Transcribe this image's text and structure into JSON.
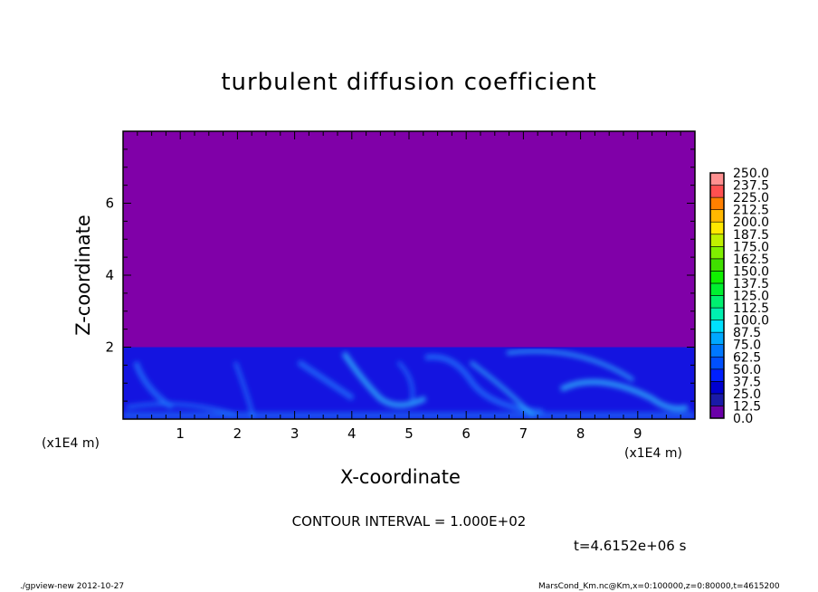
{
  "chart_data": {
    "type": "heatmap",
    "title": "turbulent diffusion coefficient",
    "xlabel": "X-coordinate",
    "ylabel": "Z-coordinate",
    "x_unit": "(x1E4 m)",
    "y_unit": "(x1E4 m)",
    "xlim": [
      0,
      10
    ],
    "ylim": [
      0,
      8
    ],
    "x_ticks": [
      "1",
      "2",
      "3",
      "4",
      "5",
      "6",
      "7",
      "8",
      "9"
    ],
    "y_ticks": [
      "2",
      "4",
      "6"
    ],
    "colorbar": {
      "levels": [
        "0.0",
        "12.5",
        "25.0",
        "37.5",
        "50.0",
        "62.5",
        "75.0",
        "87.5",
        "100.0",
        "112.5",
        "125.0",
        "137.5",
        "150.0",
        "162.5",
        "175.0",
        "187.5",
        "200.0",
        "212.5",
        "225.0",
        "237.5",
        "250.0"
      ],
      "colors": [
        "#6a00a8",
        "#1a1aa0",
        "#0000c8",
        "#0010f0",
        "#0040ff",
        "#0068ff",
        "#0090ff",
        "#00c0ff",
        "#00f0f0",
        "#00f0a0",
        "#00f060",
        "#00f020",
        "#10e000",
        "#60f000",
        "#a0f000",
        "#e8f000",
        "#ffd000",
        "#ff9800",
        "#ff6000",
        "#ff3000",
        "#ff0000",
        "#ff4040",
        "#ff8080"
      ]
    },
    "regions": [
      {
        "z_range": [
          2.0,
          8
        ],
        "value_range": [
          0.0,
          12.5
        ],
        "color": "#8000a8"
      },
      {
        "z_range": [
          0,
          2.0
        ],
        "value_range": [
          12.5,
          87.5
        ],
        "color": "#1414e0"
      }
    ],
    "contour_interval": "CONTOUR INTERVAL = 1.000E+02",
    "time": "t=4.6152e+06 s"
  },
  "footer": {
    "left": "./gpview-new  2012-10-27",
    "right": "MarsCond_Km.nc@Km,x=0:100000,z=0:80000,t=4615200"
  }
}
